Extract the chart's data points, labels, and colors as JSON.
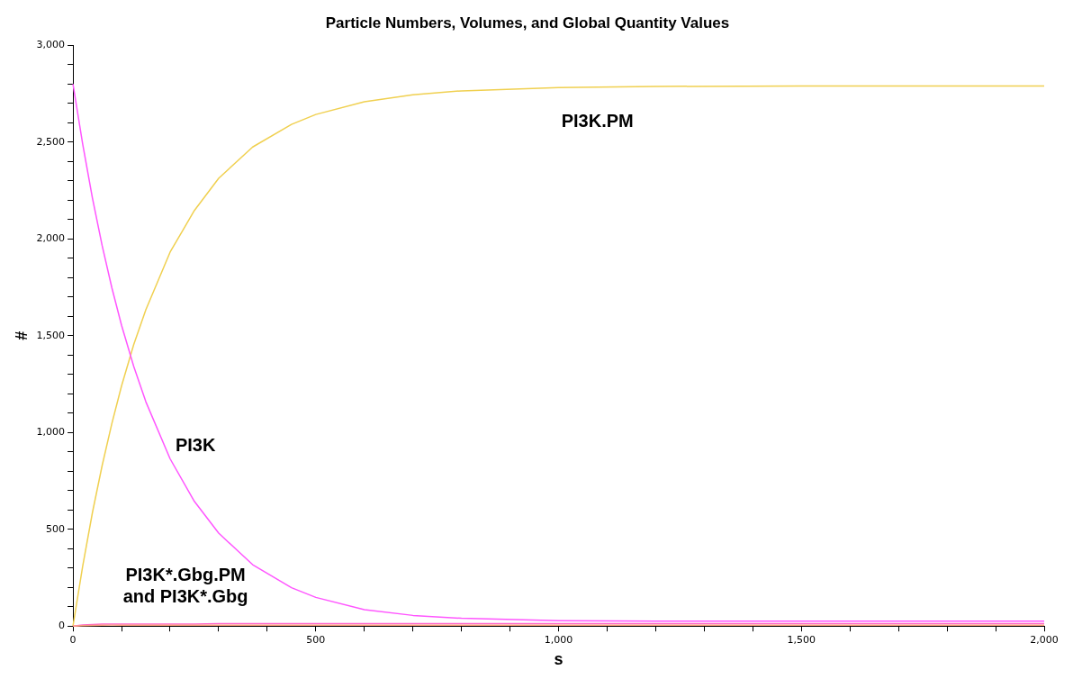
{
  "chart_data": {
    "type": "line",
    "title": "Particle Numbers, Volumes, and Global Quantity Values",
    "xlabel": "s",
    "ylabel": "#",
    "xlim": [
      0,
      2000
    ],
    "ylim": [
      0,
      3000
    ],
    "xticks": [
      0,
      {
        "value": 100,
        "label": null
      },
      {
        "value": 200,
        "label": null
      },
      {
        "value": 300,
        "label": null
      },
      {
        "value": 400,
        "label": null
      },
      500,
      {
        "value": 600,
        "label": null
      },
      {
        "value": 700,
        "label": null
      },
      {
        "value": 800,
        "label": null
      },
      {
        "value": 900,
        "label": null
      },
      {
        "value": 1000,
        "label": "1,000"
      },
      {
        "value": 1100,
        "label": null
      },
      {
        "value": 1200,
        "label": null
      },
      {
        "value": 1300,
        "label": null
      },
      {
        "value": 1400,
        "label": null
      },
      {
        "value": 1500,
        "label": "1,500"
      },
      {
        "value": 1600,
        "label": null
      },
      {
        "value": 1700,
        "label": null
      },
      {
        "value": 1800,
        "label": null
      },
      {
        "value": 1900,
        "label": null
      },
      {
        "value": 2000,
        "label": "2,000"
      }
    ],
    "yticks": [
      0,
      {
        "value": 100,
        "label": null
      },
      {
        "value": 200,
        "label": null
      },
      {
        "value": 300,
        "label": null
      },
      {
        "value": 400,
        "label": null
      },
      500,
      {
        "value": 600,
        "label": null
      },
      {
        "value": 700,
        "label": null
      },
      {
        "value": 800,
        "label": null
      },
      {
        "value": 900,
        "label": null
      },
      {
        "value": 1000,
        "label": "1,000"
      },
      {
        "value": 1100,
        "label": null
      },
      {
        "value": 1200,
        "label": null
      },
      {
        "value": 1300,
        "label": null
      },
      {
        "value": 1400,
        "label": null
      },
      {
        "value": 1500,
        "label": "1,500"
      },
      {
        "value": 1600,
        "label": null
      },
      {
        "value": 1700,
        "label": null
      },
      {
        "value": 1800,
        "label": null
      },
      {
        "value": 1900,
        "label": null
      },
      {
        "value": 2000,
        "label": "2,000"
      },
      {
        "value": 2100,
        "label": null
      },
      {
        "value": 2200,
        "label": null
      },
      {
        "value": 2300,
        "label": null
      },
      {
        "value": 2400,
        "label": null
      },
      {
        "value": 2500,
        "label": "2,500"
      },
      {
        "value": 2600,
        "label": null
      },
      {
        "value": 2700,
        "label": null
      },
      {
        "value": 2800,
        "label": null
      },
      {
        "value": 2900,
        "label": null
      },
      {
        "value": 3000,
        "label": "3,000"
      }
    ],
    "grid": false,
    "legend": false,
    "marker": "none",
    "line_style": "solid",
    "x": [
      0,
      20,
      40,
      60,
      80,
      100,
      125,
      150,
      200,
      250,
      300,
      370,
      450,
      500,
      600,
      700,
      800,
      1000,
      1200,
      1500,
      2000
    ],
    "series": [
      {
        "name": "PI3K.PM",
        "color": "#f0d050",
        "values": [
          0,
          310,
          586,
          829,
          1046,
          1241,
          1454,
          1634,
          1932,
          2147,
          2313,
          2475,
          2592,
          2643,
          2709,
          2745,
          2765,
          2782,
          2788,
          2790,
          2790
        ]
      },
      {
        "name": "PI3K",
        "color": "#ff55ff",
        "values": [
          2800,
          2489,
          2212,
          1966,
          1748,
          1554,
          1342,
          1159,
          864,
          644,
          480,
          317,
          198,
          148,
          85,
          55,
          40,
          28,
          25,
          25,
          25
        ]
      },
      {
        "color": "#ff66cc",
        "values": [
          0,
          6,
          8,
          10,
          10,
          10,
          10,
          10,
          10,
          10,
          12,
          13,
          13,
          13,
          13,
          13,
          13,
          13,
          13,
          13,
          13
        ]
      },
      {
        "color": "#ffa080",
        "values": [
          0,
          2,
          3,
          4,
          5,
          5,
          5,
          5,
          5,
          5,
          5,
          5,
          5,
          5,
          5,
          5,
          5,
          5,
          5,
          5,
          5
        ]
      }
    ],
    "annotations": [
      "PI3K*.Gbg.PM\nand PI3K*.Gbg"
    ]
  }
}
